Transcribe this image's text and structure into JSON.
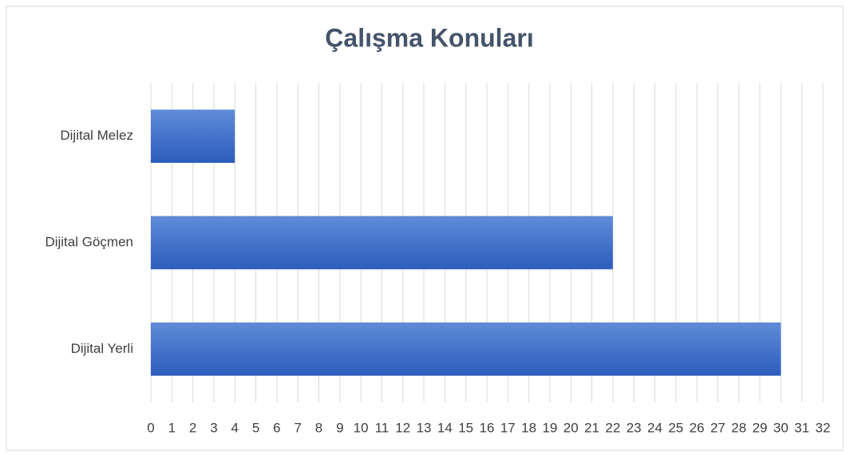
{
  "chart_data": {
    "type": "bar",
    "orientation": "horizontal",
    "title": "Çalışma Konuları",
    "categories": [
      "Dijital Melez",
      "Dijital Göçmen",
      "Dijital Yerli"
    ],
    "values": [
      4,
      22,
      30
    ],
    "color": "#4472c4",
    "xlim": [
      0,
      32
    ],
    "xticks": [
      0,
      1,
      2,
      3,
      4,
      5,
      6,
      7,
      8,
      9,
      10,
      11,
      12,
      13,
      14,
      15,
      16,
      17,
      18,
      19,
      20,
      21,
      22,
      23,
      24,
      25,
      26,
      27,
      28,
      29,
      30,
      31,
      32
    ],
    "grid": true
  }
}
